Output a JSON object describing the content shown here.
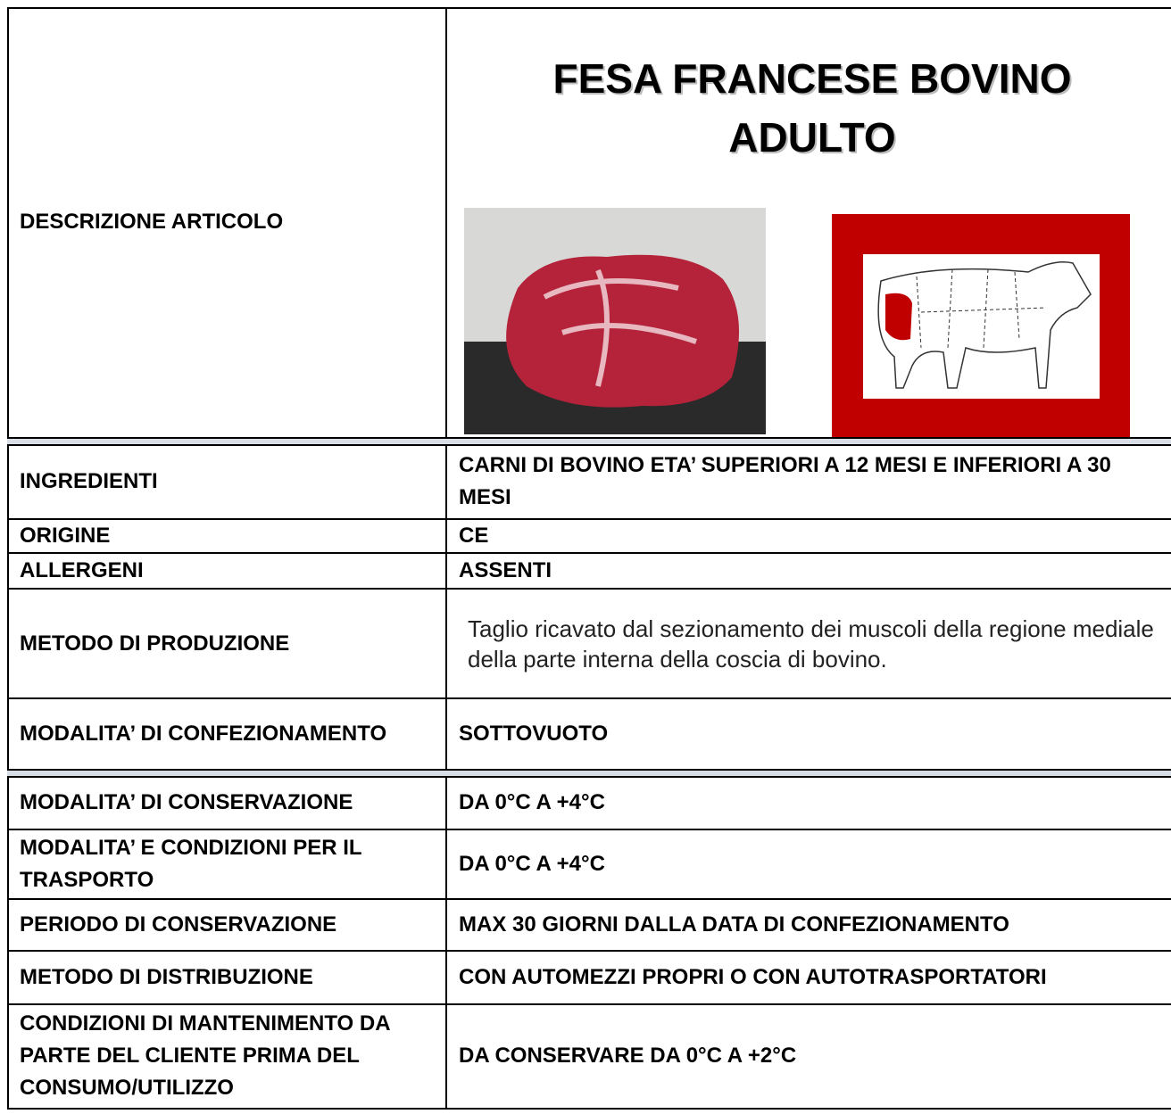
{
  "title": "FESA FRANCESE BOVINO ADULTO",
  "rows": [
    {
      "label": "DESCRIZIONE ARTICOLO"
    },
    {
      "label": "INGREDIENTI",
      "value": "CARNI DI BOVINO ETA’ SUPERIORI A 12 MESI E INFERIORI A 30 MESI"
    },
    {
      "label": "ORIGINE",
      "value": "CE"
    },
    {
      "label": "ALLERGENI",
      "value": "ASSENTI"
    },
    {
      "label": "METODO DI PRODUZIONE",
      "value": "Taglio ricavato dal sezionamento dei muscoli della regione mediale della parte interna della coscia di bovino."
    },
    {
      "label": "MODALITA’ DI CONFEZIONAMENTO",
      "value": "SOTTOVUOTO"
    },
    {
      "label": "MODALITA’ DI CONSERVAZIONE",
      "value": "DA  0°C A +4°C"
    },
    {
      "label": "MODALITA’ E CONDIZIONI PER IL TRASPORTO",
      "value": "DA  0°C A +4°C"
    },
    {
      "label": "PERIODO DI CONSERVAZIONE",
      "value": "MAX 30 GIORNI DALLA DATA DI CONFEZIONAMENTO"
    },
    {
      "label": "METODO DI DISTRIBUZIONE",
      "value": "CON AUTOMEZZI PROPRI O CON AUTOTRASPORTATORI"
    },
    {
      "label": "CONDIZIONI DI MANTENIMENTO DA PARTE DEL CLIENTE PRIMA DEL CONSUMO/UTILIZZO",
      "value": "DA CONSERVARE DA  0°C A +2°C"
    }
  ]
}
